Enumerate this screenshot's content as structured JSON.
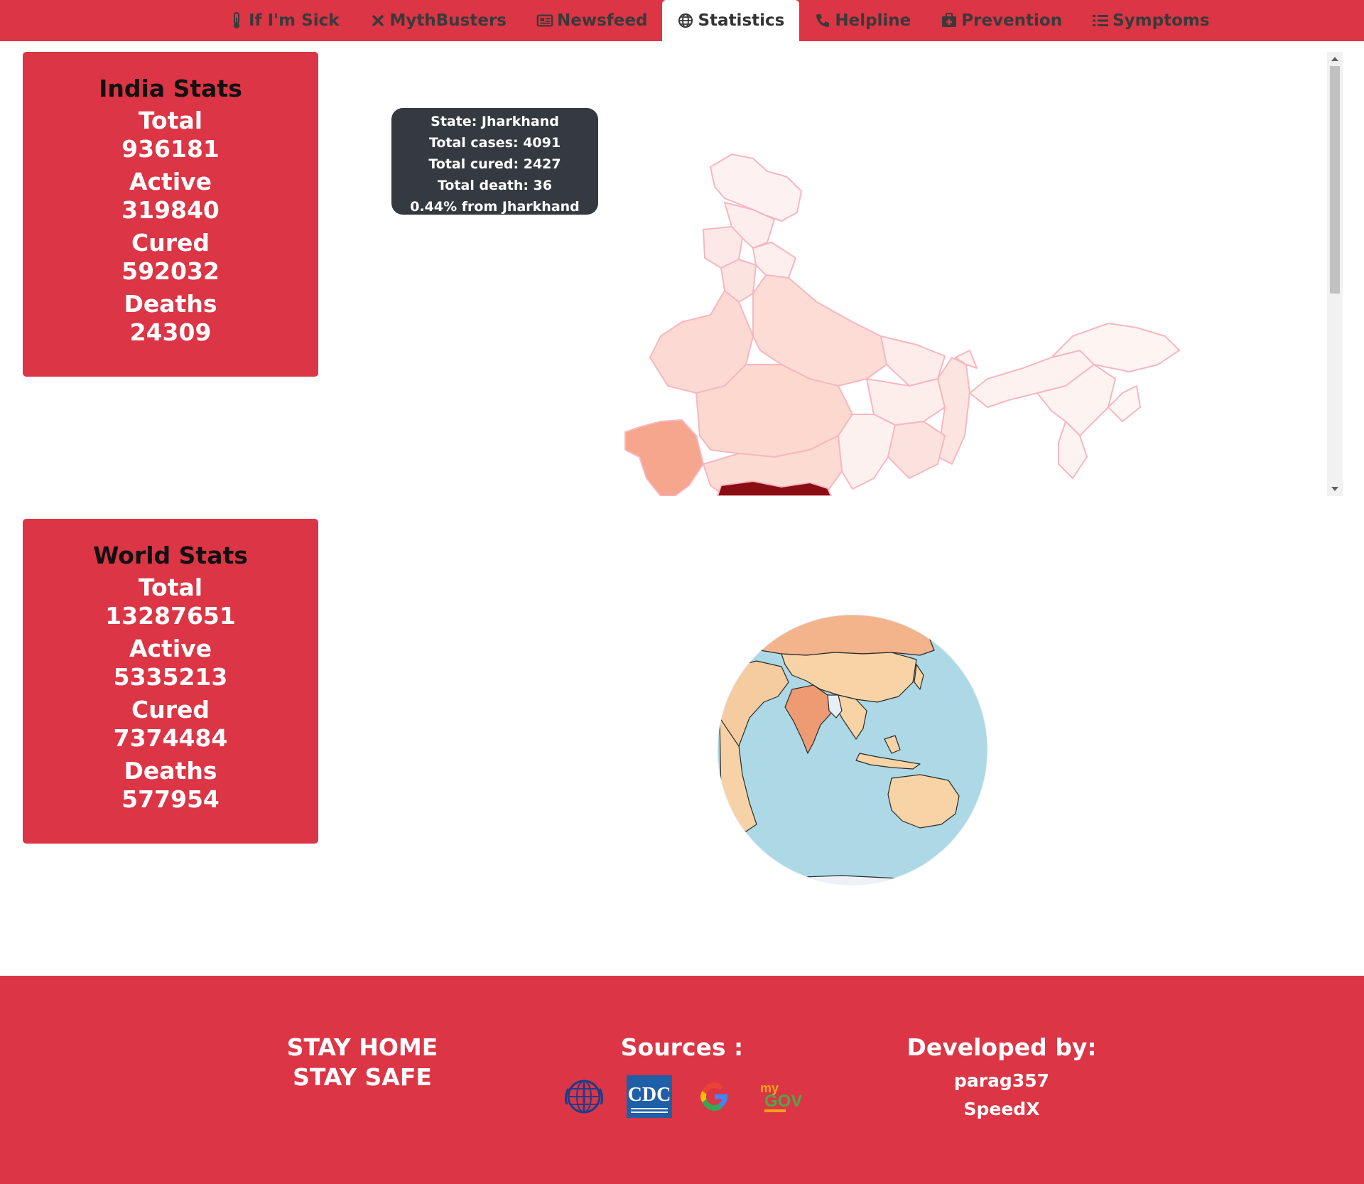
{
  "nav": {
    "tabs": [
      {
        "label": "If I'm Sick",
        "icon": "thermometer-icon",
        "active": false
      },
      {
        "label": "MythBusters",
        "icon": "times-icon",
        "active": false
      },
      {
        "label": "Newsfeed",
        "icon": "newspaper-icon",
        "active": false
      },
      {
        "label": "Statistics",
        "icon": "globe-icon",
        "active": true
      },
      {
        "label": "Helpline",
        "icon": "phone-icon",
        "active": false
      },
      {
        "label": "Prevention",
        "icon": "medkit-icon",
        "active": false
      },
      {
        "label": "Symptoms",
        "icon": "list-icon",
        "active": false
      }
    ]
  },
  "india_stats": {
    "title": "India Stats",
    "total_label": "Total",
    "total": "936181",
    "active_label": "Active",
    "active": "319840",
    "cured_label": "Cured",
    "cured": "592032",
    "deaths_label": "Deaths",
    "deaths": "24309"
  },
  "world_stats": {
    "title": "World Stats",
    "total_label": "Total",
    "total": "13287651",
    "active_label": "Active",
    "active": "5335213",
    "cured_label": "Cured",
    "cured": "7374484",
    "deaths_label": "Deaths",
    "deaths": "577954"
  },
  "tooltip": {
    "state": "State: Jharkhand",
    "cases": "Total cases: 4091",
    "cured": "Total cured: 2427",
    "death": "Total death: 36",
    "share": "0.44% from Jharkhand"
  },
  "footer": {
    "slogan_line1": "STAY HOME",
    "slogan_line2": "STAY SAFE",
    "sources_title": "Sources :",
    "sources": [
      "who-logo",
      "cdc-logo",
      "google-logo",
      "mygov-logo"
    ],
    "cdc_text": "CDC",
    "mygov_my": "my",
    "mygov_gov": "GOV",
    "developed_title": "Developed by:",
    "developers": [
      "parag357",
      "SpeedX"
    ]
  },
  "colors": {
    "brand_red": "#dc3545",
    "tooltip_bg": "#343a40",
    "ocean": "#add8e6",
    "land": "#f5d5a0"
  }
}
